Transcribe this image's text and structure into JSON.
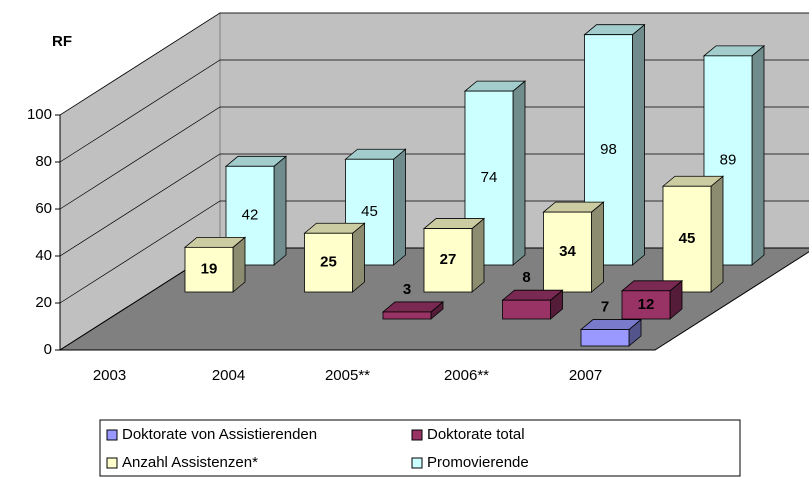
{
  "chart_data": {
    "type": "bar3d",
    "ylabel": "RF",
    "categories": [
      "2003",
      "2004",
      "2005**",
      "2006**",
      "2007"
    ],
    "series": [
      {
        "name": "Doktorate von Assistierenden",
        "color": "#9999ff",
        "values": [
          null,
          null,
          null,
          null,
          7
        ]
      },
      {
        "name": "Doktorate total",
        "color": "#993366",
        "values": [
          null,
          null,
          3,
          8,
          12
        ]
      },
      {
        "name": "Anzahl Assistenzen*",
        "color": "#ffffcc",
        "values": [
          19,
          25,
          27,
          34,
          45
        ]
      },
      {
        "name": "Promovierende",
        "color": "#ccffff",
        "values": [
          42,
          45,
          74,
          98,
          89
        ]
      }
    ],
    "ylim": [
      0,
      100
    ],
    "yticks": [
      0,
      20,
      40,
      60,
      80,
      100
    ],
    "grid": true
  }
}
